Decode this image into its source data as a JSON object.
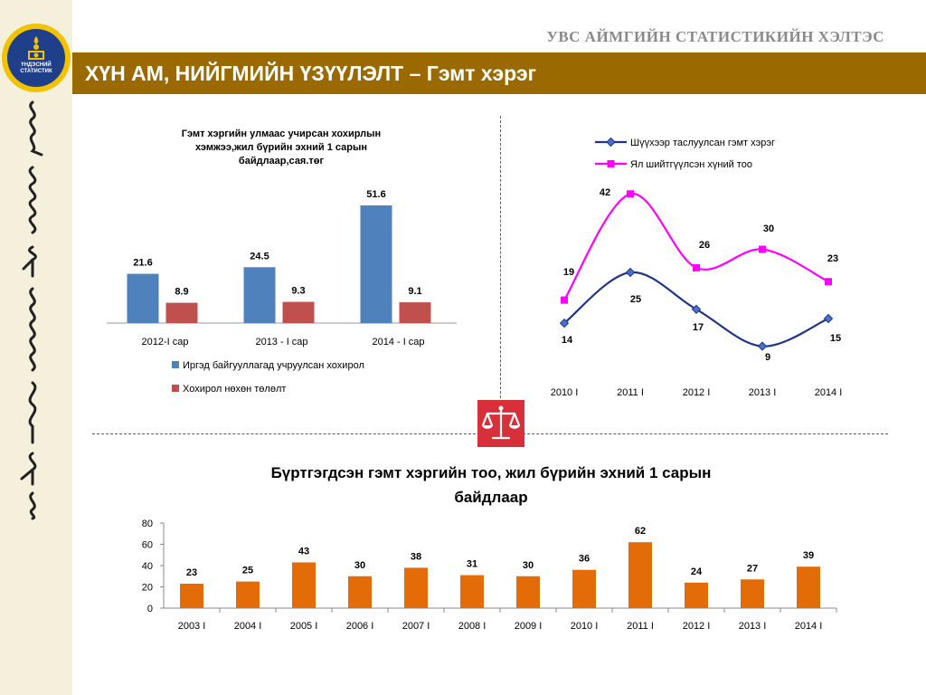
{
  "header": {
    "agency": "УВС АЙМГИЙН СТАТИСТИКИЙН ХЭЛТЭС",
    "title": "ХҮН АМ, НИЙГМИЙН ҮЗҮҮЛЭЛТ – Гэмт хэрэг",
    "logo_text": [
      "ҮНДЭСНИЙ",
      "СТАТИСТИК"
    ]
  },
  "colors": {
    "title_bar": "#9a6a00",
    "blue": "#4f81bd",
    "red": "#c0504d",
    "navy": "#1f3585",
    "magenta": "#ff00ff",
    "orange": "#e36c09"
  },
  "icons": [
    "soyombo-emblem",
    "scales-of-justice-icon"
  ],
  "chart_data": [
    {
      "type": "bar",
      "title": "Гэмт хэргийн улмаас учирсан хохирлын хэмжээ,жил бүрийн эхний 1 сарын байдлаар,сая.төг",
      "title_lines": [
        "Гэмт хэргийн улмаас учирсан хохирлын",
        "хэмжээ,жил бүрийн эхний 1 сарын",
        "байдлаар,сая.төг"
      ],
      "categories": [
        "2012-I сар",
        "2013 - I сар",
        "2014 - I сар"
      ],
      "series": [
        {
          "name": "Иргэд байгууллагад учруулсан хохирол",
          "values": [
            21.6,
            24.5,
            51.6
          ],
          "labels": [
            "21.6",
            "24.5",
            "51.6"
          ]
        },
        {
          "name": "Хохирол нөхөн төлөлт",
          "values": [
            8.9,
            9.3,
            9.1
          ],
          "labels": [
            "8.9",
            "9.3",
            "9.1"
          ]
        }
      ],
      "ylim": [
        0,
        60
      ],
      "legend_position": "bottom"
    },
    {
      "type": "line",
      "categories": [
        "2010 I",
        "2011 I",
        "2012 I",
        "2013 I",
        "2014 I"
      ],
      "series": [
        {
          "name": "Шүүхээр таслуулсан гэмт хэрэг",
          "values": [
            14,
            25,
            17,
            9,
            15
          ],
          "labels": [
            "14",
            "25",
            "17",
            "9",
            "15"
          ]
        },
        {
          "name": "Ял шийтгүүлсэн хүний тоо",
          "values": [
            19,
            42,
            26,
            30,
            23
          ],
          "labels": [
            "19",
            "42",
            "26",
            "30",
            "23"
          ]
        }
      ],
      "ylim": [
        5,
        44
      ],
      "legend_position": "top"
    },
    {
      "type": "bar",
      "title": "Бүртгэгдсэн гэмт хэргийн тоо, жил бүрийн эхний 1 сарын байдлаар",
      "title_lines": [
        "Бүртгэгдсэн гэмт хэргийн тоо, жил бүрийн эхний 1 сарын",
        "байдлаар"
      ],
      "categories": [
        "2003 I",
        "2004 I",
        "2005 I",
        "2006 I",
        "2007 I",
        "2008 I",
        "2009 I",
        "2010 I",
        "2011 I",
        "2012 I",
        "2013 I",
        "2014 I"
      ],
      "values": [
        23,
        25,
        43,
        30,
        38,
        31,
        30,
        36,
        62,
        24,
        27,
        39
      ],
      "labels": [
        "23",
        "25",
        "43",
        "30",
        "38",
        "31",
        "30",
        "36",
        "62",
        "24",
        "27",
        "39"
      ],
      "ylim": [
        0,
        80
      ],
      "yticks": [
        0,
        20,
        40,
        60,
        80
      ],
      "ytick_labels": [
        "0",
        "20",
        "40",
        "60",
        "80"
      ],
      "grid": false
    }
  ]
}
